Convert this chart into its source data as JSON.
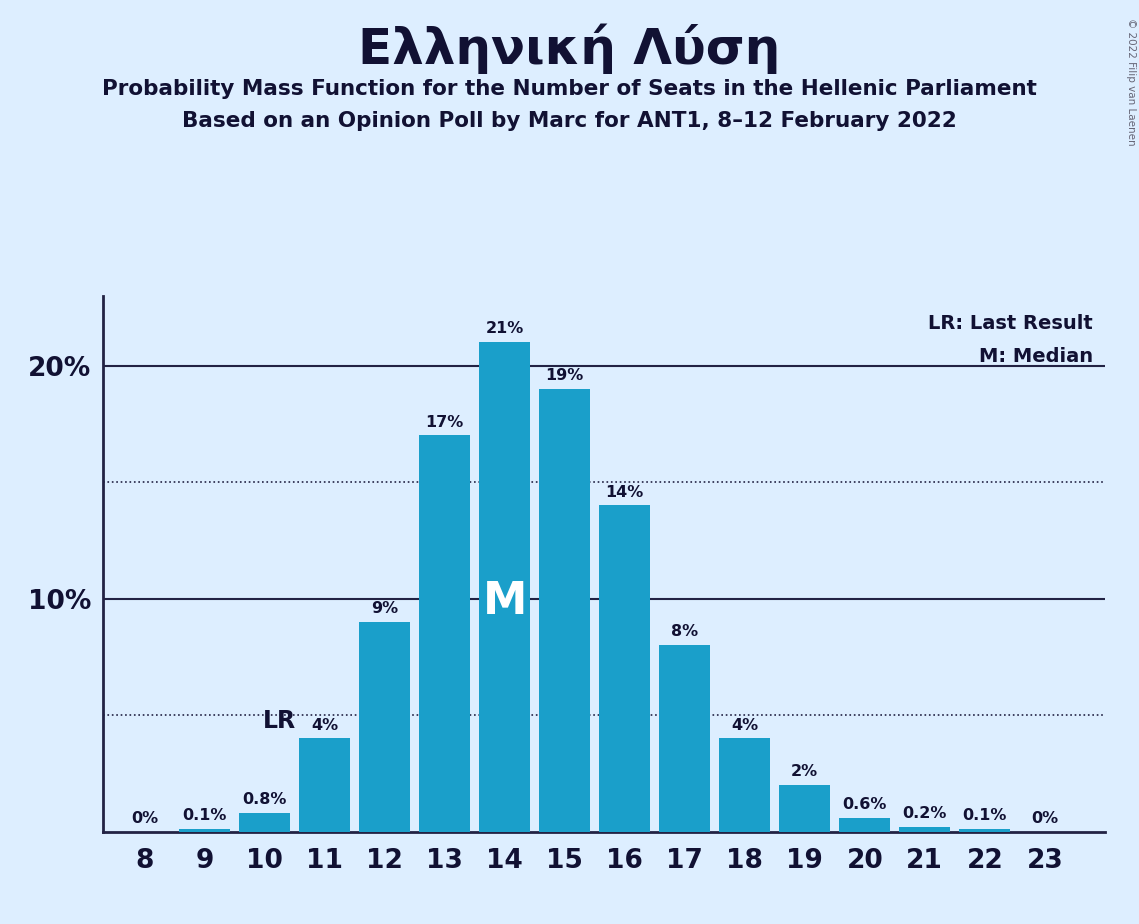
{
  "title": "Ελληνική Λύση",
  "subtitle1": "Probability Mass Function for the Number of Seats in the Hellenic Parliament",
  "subtitle2": "Based on an Opinion Poll by Marc for ANT1, 8–12 February 2022",
  "copyright": "© 2022 Filip van Laenen",
  "seats": [
    8,
    9,
    10,
    11,
    12,
    13,
    14,
    15,
    16,
    17,
    18,
    19,
    20,
    21,
    22,
    23
  ],
  "probabilities": [
    0.0,
    0.1,
    0.8,
    4.0,
    9.0,
    17.0,
    21.0,
    19.0,
    14.0,
    8.0,
    4.0,
    2.0,
    0.6,
    0.2,
    0.1,
    0.0
  ],
  "prob_labels": [
    "0%",
    "0.1%",
    "0.8%",
    "4%",
    "9%",
    "17%",
    "21%",
    "19%",
    "14%",
    "8%",
    "4%",
    "2%",
    "0.6%",
    "0.2%",
    "0.1%",
    "0%"
  ],
  "bar_color": "#1a9fca",
  "background_color": "#ddeeff",
  "label_color": "#111133",
  "median_seat": 14,
  "last_result_seat": 11,
  "ylim": [
    0,
    23
  ],
  "solid_lines": [
    10,
    20
  ],
  "dotted_lines": [
    5,
    15
  ]
}
